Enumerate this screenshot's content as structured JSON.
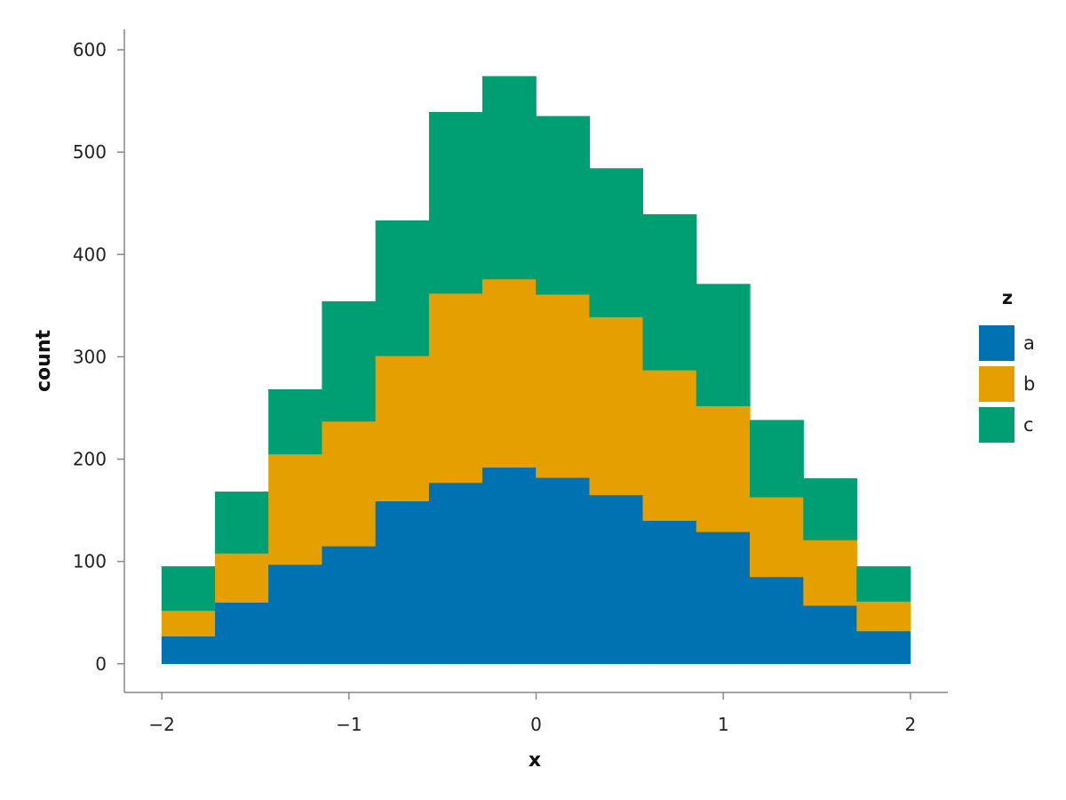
{
  "chart_data": {
    "type": "bar",
    "stacked": true,
    "title": "",
    "xlabel": "x",
    "ylabel": "count",
    "xlim": [
      -2.2,
      2.2
    ],
    "ylim": [
      -28,
      620
    ],
    "xticks": [
      -2,
      -1,
      0,
      1,
      2
    ],
    "xtick_labels": [
      "−2",
      "−1",
      "0",
      "1",
      "2"
    ],
    "yticks": [
      0,
      100,
      200,
      300,
      400,
      500,
      600
    ],
    "ytick_labels": [
      "0",
      "100",
      "200",
      "300",
      "400",
      "500",
      "600"
    ],
    "grid": false,
    "legend": {
      "title": "z",
      "position": "right"
    },
    "bin_edges": [
      -2.0,
      -1.714,
      -1.429,
      -1.143,
      -0.857,
      -0.571,
      -0.286,
      0.0,
      0.286,
      0.571,
      0.857,
      1.143,
      1.429,
      1.714,
      2.0
    ],
    "bins": [
      "[-2.000, -1.714)",
      "[-1.714, -1.429)",
      "[-1.429, -1.143)",
      "[-1.143, -0.857)",
      "[-0.857, -0.571)",
      "[-0.571, -0.286)",
      "[-0.286, 0.000)",
      "[0.000, 0.286)",
      "[0.286, 0.571)",
      "[0.571, 0.857)",
      "[0.857, 1.143)",
      "[1.143, 1.429)",
      "[1.429, 1.714)",
      "[1.714, 2.000]"
    ],
    "series": [
      {
        "name": "a",
        "color": "#0072B2",
        "values": [
          27,
          60,
          97,
          115,
          159,
          177,
          192,
          182,
          165,
          140,
          129,
          85,
          57,
          32
        ]
      },
      {
        "name": "b",
        "color": "#E69F00",
        "values": [
          25,
          48,
          108,
          122,
          142,
          185,
          184,
          179,
          174,
          147,
          123,
          78,
          64,
          29
        ]
      },
      {
        "name": "c",
        "color": "#009E73",
        "values": [
          43,
          60,
          63,
          117,
          132,
          177,
          198,
          174,
          145,
          152,
          119,
          75,
          60,
          34
        ]
      }
    ]
  }
}
